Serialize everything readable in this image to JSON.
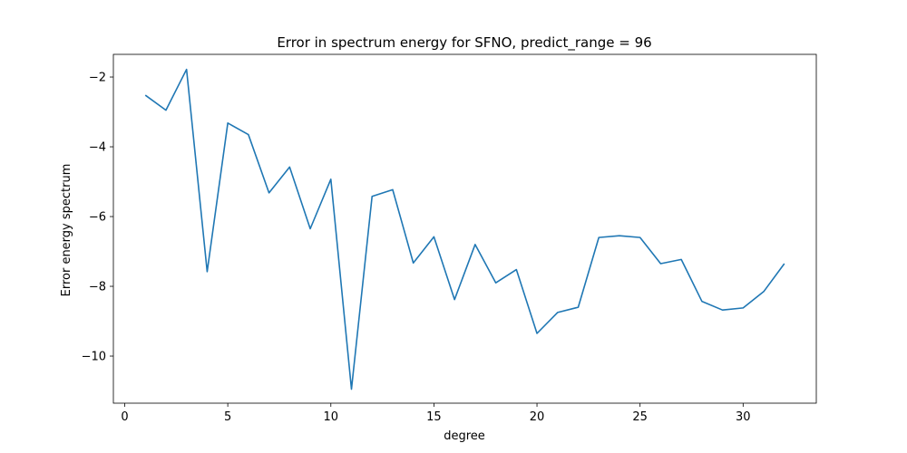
{
  "chart_data": {
    "type": "line",
    "title": "Error in spectrum energy for SFNO, predict_range = 96",
    "xlabel": "degree",
    "ylabel": "Error energy spectrum",
    "xlim": [
      -0.55,
      33.55
    ],
    "ylim": [
      -11.35,
      -1.35
    ],
    "xticks": [
      0,
      5,
      10,
      15,
      20,
      25,
      30
    ],
    "yticks": [
      -10,
      -8,
      -6,
      -4,
      -2
    ],
    "ytick_labels": [
      "−10",
      "−8",
      "−6",
      "−4",
      "−2"
    ],
    "grid": false,
    "line_color": "#1f77b4",
    "series": [
      {
        "x": [
          1,
          2,
          3,
          4,
          5,
          6,
          7,
          8,
          9,
          10,
          11,
          12,
          13,
          14,
          15,
          16,
          17,
          18,
          19,
          20,
          21,
          22,
          23,
          24,
          25,
          26,
          27,
          28,
          29,
          30,
          31,
          32
        ],
        "values": [
          -2.52,
          -2.95,
          -1.78,
          -7.58,
          -3.32,
          -3.65,
          -5.32,
          -4.58,
          -6.35,
          -4.93,
          -10.95,
          -5.42,
          -5.23,
          -7.33,
          -6.58,
          -8.38,
          -6.8,
          -7.9,
          -7.52,
          -9.35,
          -8.75,
          -8.6,
          -6.6,
          -6.55,
          -6.6,
          -7.35,
          -7.23,
          -8.43,
          -8.68,
          -8.62,
          -8.15,
          -7.35
        ]
      }
    ]
  }
}
